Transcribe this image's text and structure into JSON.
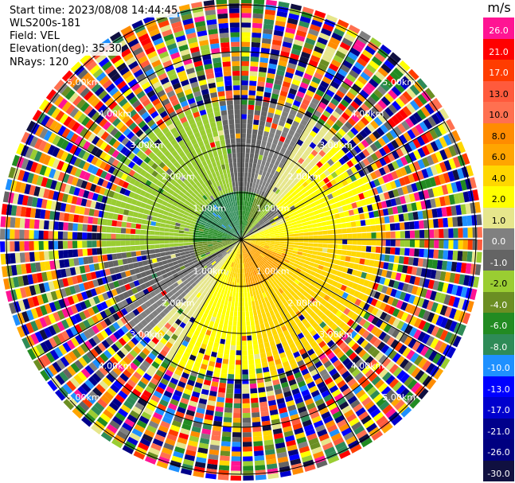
{
  "info": {
    "start_time": "Start time: 2023/08/08 14:44:45",
    "instrument": "WLS200s-181",
    "field": "Field: VEL",
    "elevation": "Elevation(deg): 35.30",
    "nrays": "NRays: 120"
  },
  "chart_data": {
    "type": "ppi-polar",
    "title": "",
    "field": "VEL",
    "units": "m/s",
    "elevation_deg": 35.3,
    "nrays": 120,
    "range_ring_labels": [
      "1.00km",
      "2.00km",
      "3.00km",
      "4.00km",
      "5.00km"
    ],
    "colorbar": {
      "title": "m/s",
      "ticks": [
        "26.0",
        "21.0",
        "17.0",
        "13.0",
        "10.0",
        "8.0",
        "6.0",
        "4.0",
        "2.0",
        "1.0",
        "0.0",
        "-1.0",
        "-2.0",
        "-4.0",
        "-6.0",
        "-8.0",
        "-10.0",
        "-13.0",
        "-17.0",
        "-21.0",
        "-26.0",
        "-30.0"
      ],
      "colors": [
        "#ff1493",
        "#ff0000",
        "#ff3c00",
        "#ff5a3c",
        "#ff7050",
        "#ff8c00",
        "#ffa500",
        "#ffd700",
        "#ffff00",
        "#e6e68c",
        "#808080",
        "#646464",
        "#9acd32",
        "#6b8e23",
        "#228b22",
        "#2e8b57",
        "#1e90ff",
        "#0000ff",
        "#0000cd",
        "#00008b",
        "#000080",
        "#101040"
      ]
    }
  }
}
